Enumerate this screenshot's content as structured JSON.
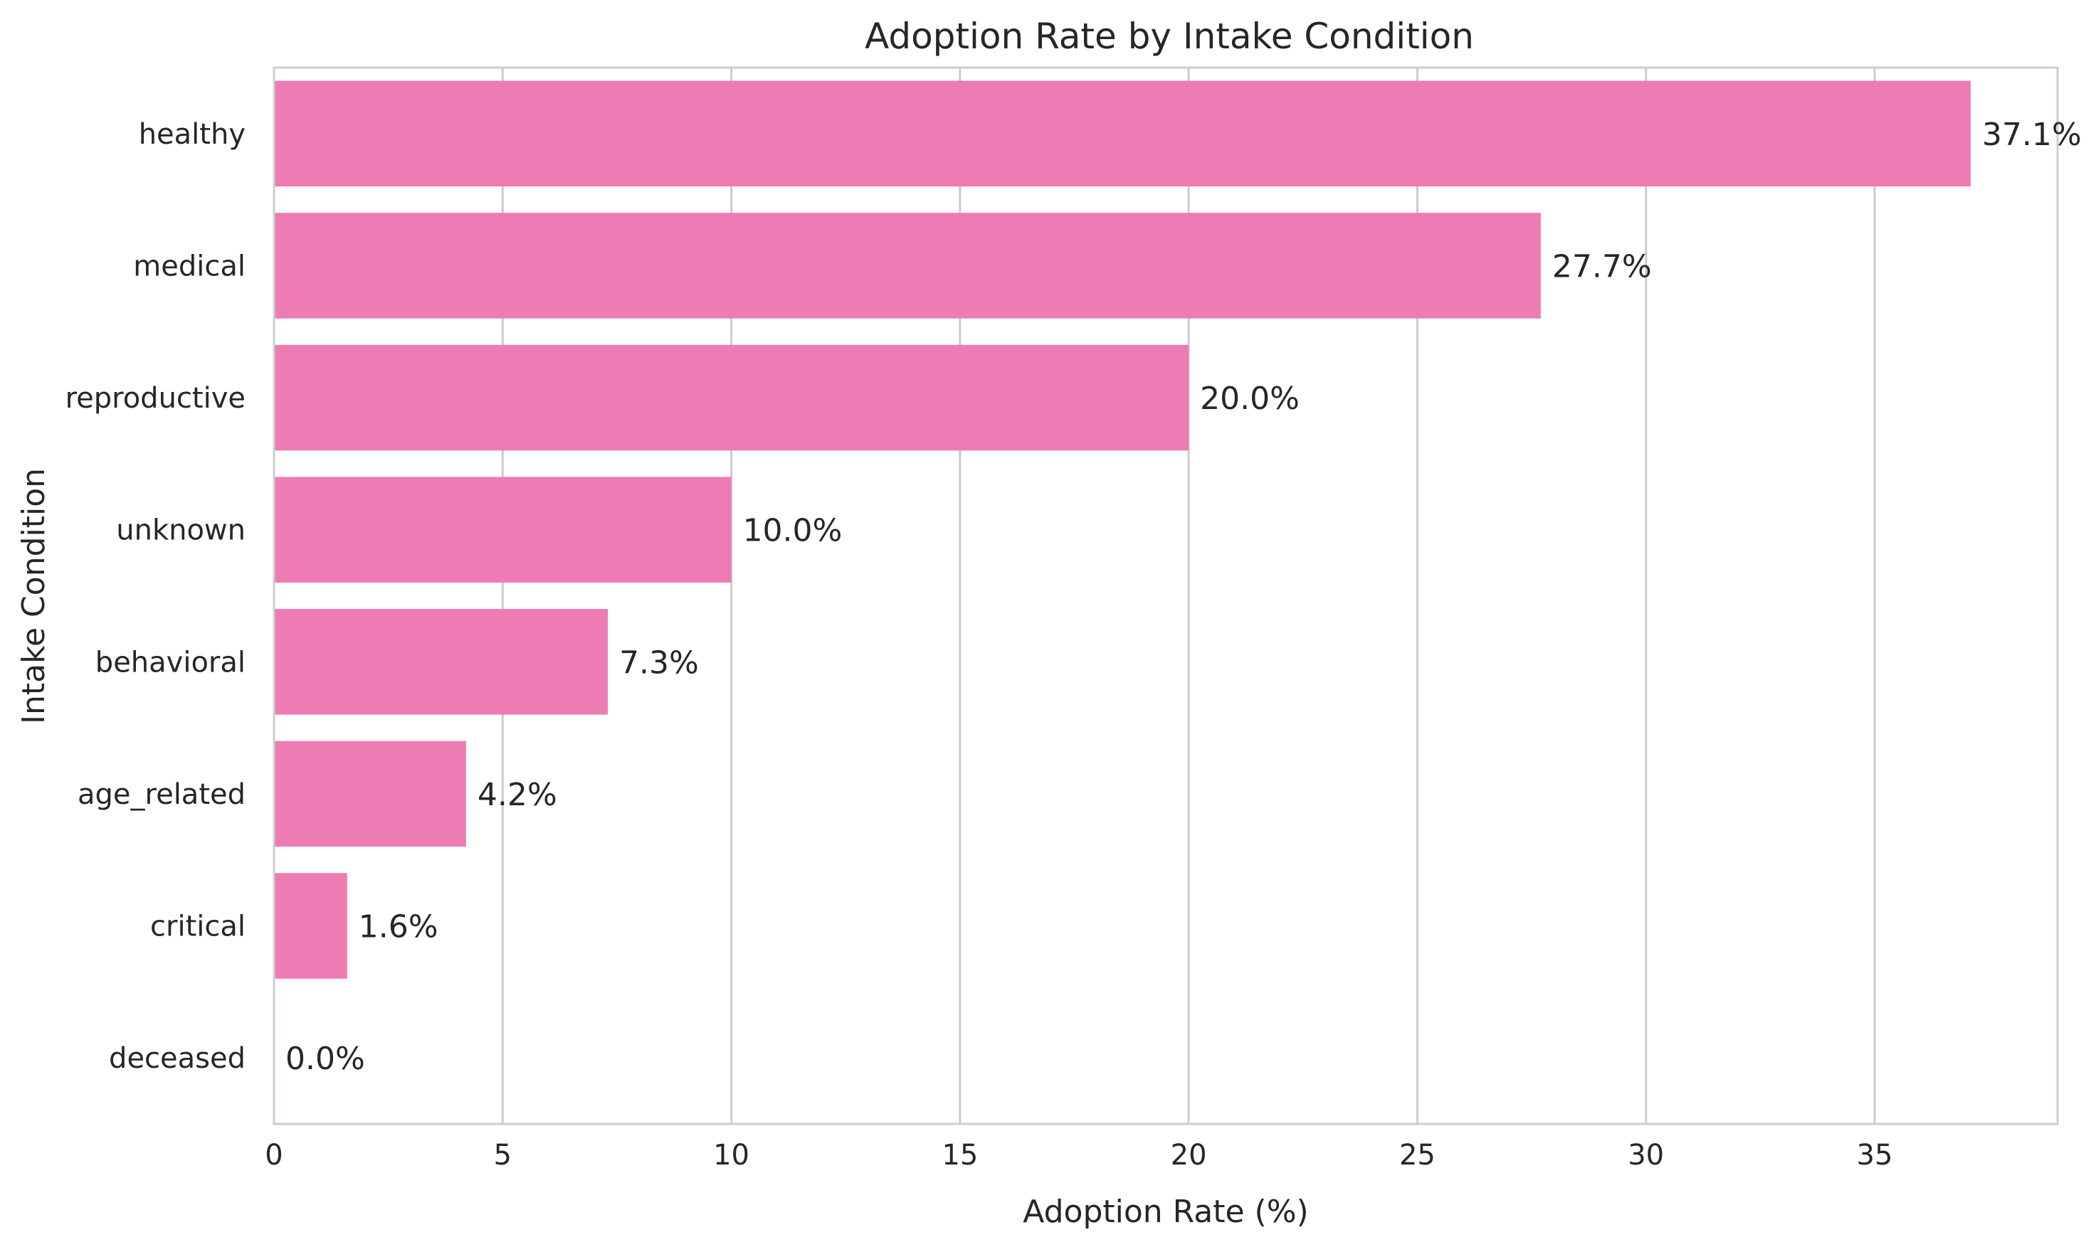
{
  "chart_data": {
    "type": "bar",
    "orientation": "horizontal",
    "title": "Adoption Rate by Intake Condition",
    "xlabel": "Adoption Rate (%)",
    "ylabel": "Intake Condition",
    "xlim": [
      0,
      39
    ],
    "xticks": [
      0,
      5,
      10,
      15,
      20,
      25,
      30,
      35
    ],
    "grid": "vertical",
    "categories": [
      "healthy",
      "medical",
      "reproductive",
      "unknown",
      "behavioral",
      "age_related",
      "critical",
      "deceased"
    ],
    "values": [
      37.1,
      27.7,
      20.0,
      10.0,
      7.3,
      4.2,
      1.6,
      0.0
    ],
    "value_labels": [
      "37.1%",
      "27.7%",
      "20.0%",
      "10.0%",
      "7.3%",
      "4.2%",
      "1.6%",
      "0.0%"
    ],
    "bar_color": "#ec7cb3",
    "grid_color": "#cccccc",
    "frame_color": "#c7d1d1"
  }
}
